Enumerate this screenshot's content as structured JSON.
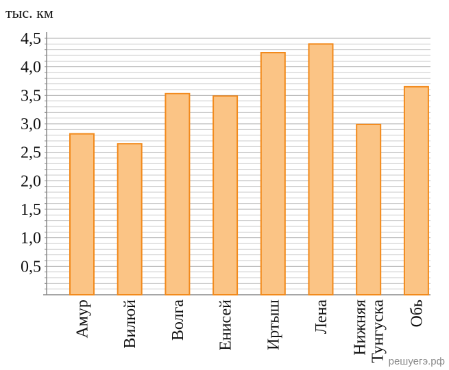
{
  "chart_data": {
    "type": "bar",
    "unit_label": "тыс. км",
    "categories": [
      "Амур",
      "Вилюй",
      "Волга",
      "Енисей",
      "Иртыш",
      "Лена",
      "Нижняя Тунгуска",
      "Обь"
    ],
    "category_lines": [
      [
        "Амур"
      ],
      [
        "Вилюй"
      ],
      [
        "Волга"
      ],
      [
        "Енисей"
      ],
      [
        "Иртыш"
      ],
      [
        "Лена"
      ],
      [
        "Нижняя",
        "Тунгуска"
      ],
      [
        "Обь"
      ]
    ],
    "values": [
      2.824,
      2.65,
      3.53,
      3.487,
      4.248,
      4.4,
      2.989,
      3.65
    ],
    "yticks": [
      "0,5",
      "1,0",
      "1,5",
      "2,0",
      "2,5",
      "3,0",
      "3,5",
      "4,0",
      "4,5"
    ],
    "ylim": [
      0,
      4.5
    ],
    "minor_step": 0.1,
    "grid": true,
    "colors": {
      "bar_fill": "#fbc485",
      "bar_stroke": "#f28a1c",
      "grid": "#c8c8c8",
      "axis": "#888888"
    }
  },
  "watermark": "решуегэ.рф"
}
